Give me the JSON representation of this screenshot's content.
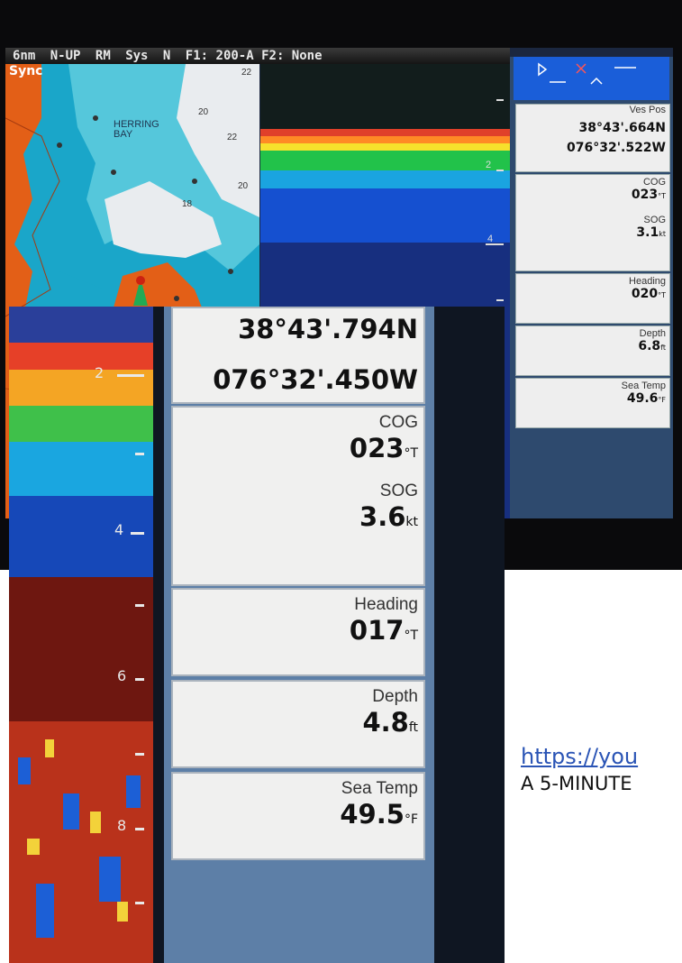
{
  "display1": {
    "topbar": [
      "6nm",
      "N-UP",
      "RM",
      "Sys",
      "N",
      "F1: 200-A  F2: None"
    ],
    "sync": "Sync",
    "map_labels": {
      "place": "HERRING BAY",
      "depth_a": "22",
      "depth_b": "20",
      "depth_c": "22",
      "depth_d": "20",
      "depth_e": "18"
    },
    "sonar_ticks": [
      "2",
      "4"
    ],
    "ves_pos": {
      "label": "Ves Pos",
      "lat": "38°43'.664N",
      "lon": "076°32'.522W"
    },
    "cog": {
      "label": "COG",
      "value": "023",
      "unit": "°T"
    },
    "sog": {
      "label": "SOG",
      "value": "3.1",
      "unit": "kt"
    },
    "heading": {
      "label": "Heading",
      "value": "020",
      "unit": "°T"
    },
    "depth": {
      "label": "Depth",
      "value": "6.8",
      "unit": "ft"
    },
    "sea_temp": {
      "label": "Sea Temp",
      "value": "49.6",
      "unit": "°F"
    }
  },
  "display2": {
    "sonar_ticks": [
      "2",
      "4",
      "6",
      "8"
    ],
    "lat": "38°43'.794N",
    "lon": "076°32'.450W",
    "cog": {
      "label": "COG",
      "value": "023",
      "unit": "°T"
    },
    "sog": {
      "label": "SOG",
      "value": "3.6",
      "unit": "kt"
    },
    "heading": {
      "label": "Heading",
      "value": "017",
      "unit": "°T"
    },
    "depth": {
      "label": "Depth",
      "value": "4.8",
      "unit": "ft"
    },
    "sea_temp": {
      "label": "Sea Temp",
      "value": "49.5",
      "unit": "°F"
    }
  },
  "link_text": "https://you",
  "caption_text": "A 5-MINUTE"
}
